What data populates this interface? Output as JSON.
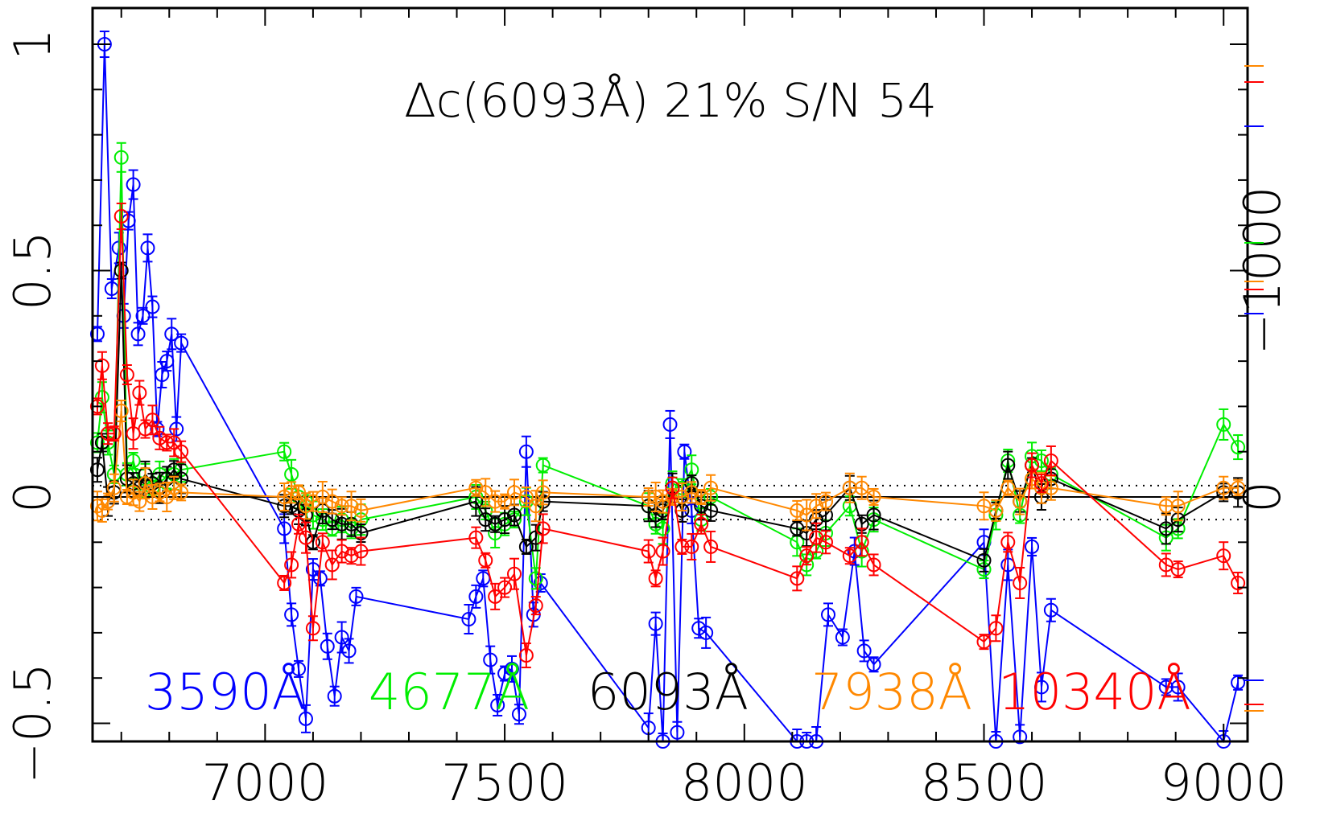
{
  "chart_data": {
    "type": "line",
    "title": "Δc(6093Å) 21% S/N 54",
    "xlabel": "",
    "ylabel": "",
    "xlim": [
      6640,
      9050
    ],
    "ylim": [
      -0.54,
      1.08
    ],
    "x_ticks": [
      7000,
      7500,
      8000,
      8500,
      9000
    ],
    "x_tick_labels": [
      "7000",
      "7500",
      "8000",
      "8500",
      "9000"
    ],
    "y_ticks": [
      -0.5,
      0,
      0.5,
      1
    ],
    "y_tick_labels": [
      "−0.5",
      "0",
      "0.5",
      "1"
    ],
    "right_axis": {
      "labels": [
        {
          "value": 0,
          "text": "0"
        },
        {
          "value": -1000,
          "text": "−1000"
        }
      ]
    },
    "reference_lines": {
      "solid": 0,
      "dotted": [
        0.025,
        -0.05
      ]
    },
    "grid": false,
    "legend_position": "bottom",
    "series": [
      {
        "name": "3590Å",
        "color": "#0000ff",
        "x": [
          6650,
          6665,
          6680,
          6695,
          6705,
          6715,
          6725,
          6735,
          6745,
          6755,
          6765,
          6775,
          6785,
          6795,
          6805,
          6815,
          6825,
          7040,
          7055,
          7070,
          7085,
          7100,
          7115,
          7130,
          7145,
          7160,
          7175,
          7190,
          7425,
          7440,
          7455,
          7470,
          7485,
          7500,
          7515,
          7530,
          7545,
          7560,
          7575,
          7800,
          7815,
          7830,
          7845,
          7860,
          7875,
          7890,
          7905,
          7920,
          8110,
          8130,
          8150,
          8175,
          8205,
          8230,
          8250,
          8270,
          8500,
          8525,
          8550,
          8575,
          8600,
          8620,
          8640,
          8880,
          8905,
          9000,
          9030
        ],
        "y": [
          0.36,
          1.0,
          0.46,
          0.55,
          0.4,
          0.61,
          0.69,
          0.36,
          0.4,
          0.55,
          0.42,
          0.15,
          0.27,
          0.3,
          0.36,
          0.15,
          0.34,
          -0.07,
          -0.26,
          -0.38,
          -0.49,
          -0.16,
          -0.18,
          -0.33,
          -0.44,
          -0.31,
          -0.34,
          -0.22,
          -0.27,
          -0.22,
          -0.18,
          -0.36,
          -0.46,
          -0.39,
          -0.38,
          -0.48,
          0.1,
          -0.26,
          -0.19,
          -0.51,
          -0.28,
          -0.54,
          0.16,
          -0.52,
          0.1,
          -0.03,
          -0.29,
          -0.3,
          -0.65,
          -0.54,
          -0.6,
          -0.26,
          -0.31,
          -0.12,
          -0.34,
          -0.37,
          -0.1,
          -0.58,
          -0.15,
          -0.53,
          -0.11,
          -0.42,
          -0.25,
          -0.42,
          -0.42,
          -0.58,
          -0.41
        ]
      },
      {
        "name": "4677Å",
        "color": "#00ee00",
        "x": [
          6650,
          6660,
          6672,
          6685,
          6700,
          6712,
          6725,
          6738,
          6750,
          6765,
          6780,
          6795,
          6810,
          6825,
          7040,
          7055,
          7070,
          7085,
          7100,
          7120,
          7140,
          7160,
          7180,
          7200,
          7440,
          7460,
          7480,
          7500,
          7520,
          7545,
          7565,
          7580,
          7800,
          7815,
          7830,
          7850,
          7870,
          7890,
          7910,
          7930,
          8110,
          8130,
          8150,
          8170,
          8220,
          8245,
          8270,
          8500,
          8525,
          8550,
          8575,
          8600,
          8620,
          8640,
          8880,
          8905,
          9000,
          9030
        ],
        "y": [
          0.12,
          0.22,
          0.12,
          0.05,
          0.75,
          0.05,
          0.08,
          0.03,
          0.05,
          0.02,
          0.05,
          0.04,
          0.05,
          0.06,
          0.1,
          0.05,
          0.0,
          -0.01,
          -0.04,
          -0.05,
          -0.07,
          -0.05,
          -0.07,
          -0.05,
          0.0,
          -0.03,
          -0.08,
          -0.06,
          -0.05,
          -0.01,
          -0.18,
          0.07,
          -0.02,
          -0.06,
          -0.07,
          0.03,
          0.02,
          0.06,
          -0.05,
          0.0,
          -0.1,
          -0.15,
          -0.12,
          -0.08,
          -0.02,
          -0.12,
          -0.05,
          -0.16,
          -0.04,
          0.08,
          -0.04,
          0.09,
          0.08,
          0.05,
          -0.09,
          -0.07,
          0.16,
          0.11
        ]
      },
      {
        "name": "6093Å",
        "color": "#000000",
        "x": [
          6650,
          6660,
          6672,
          6685,
          6700,
          6712,
          6725,
          6738,
          6750,
          6765,
          6780,
          6795,
          6810,
          6825,
          7040,
          7055,
          7070,
          7085,
          7100,
          7120,
          7140,
          7160,
          7180,
          7200,
          7440,
          7460,
          7480,
          7500,
          7520,
          7545,
          7565,
          7580,
          7800,
          7815,
          7830,
          7850,
          7870,
          7890,
          7910,
          7930,
          8110,
          8130,
          8150,
          8170,
          8220,
          8245,
          8270,
          8500,
          8525,
          8550,
          8575,
          8600,
          8620,
          8640,
          8880,
          8905,
          9000,
          9030
        ],
        "y": [
          0.06,
          0.12,
          -0.01,
          0.01,
          0.5,
          0.04,
          0.03,
          0.02,
          0.05,
          0.03,
          0.02,
          0.04,
          0.06,
          0.04,
          -0.02,
          -0.02,
          -0.03,
          -0.04,
          -0.1,
          -0.03,
          -0.05,
          -0.06,
          -0.06,
          -0.08,
          -0.01,
          -0.05,
          -0.06,
          -0.05,
          -0.04,
          -0.11,
          -0.09,
          -0.01,
          -0.02,
          -0.04,
          -0.03,
          0.02,
          -0.03,
          0.03,
          -0.02,
          -0.03,
          -0.07,
          -0.08,
          -0.05,
          -0.04,
          0.02,
          -0.06,
          -0.04,
          -0.14,
          -0.03,
          0.07,
          -0.01,
          0.07,
          0.0,
          0.04,
          -0.07,
          -0.05,
          0.01,
          0.01
        ]
      },
      {
        "name": "7938Å",
        "color": "#ff8800",
        "x": [
          6650,
          6660,
          6672,
          6685,
          6700,
          6712,
          6725,
          6738,
          6750,
          6765,
          6780,
          6795,
          6810,
          6825,
          7040,
          7055,
          7070,
          7085,
          7100,
          7120,
          7140,
          7160,
          7180,
          7200,
          7440,
          7460,
          7480,
          7500,
          7520,
          7545,
          7565,
          7580,
          7800,
          7815,
          7830,
          7850,
          7870,
          7890,
          7910,
          7930,
          8110,
          8130,
          8150,
          8170,
          8220,
          8245,
          8270,
          8500,
          8525,
          8550,
          8575,
          8600,
          8620,
          8640,
          8880,
          8905,
          9000,
          9030
        ],
        "y": [
          -0.02,
          -0.03,
          -0.01,
          0.02,
          0.19,
          0.0,
          0.01,
          -0.01,
          0.03,
          0.0,
          0.01,
          0.0,
          0.02,
          0.01,
          0.0,
          0.01,
          0.01,
          -0.02,
          -0.01,
          0.0,
          -0.01,
          -0.02,
          -0.02,
          -0.03,
          0.02,
          0.01,
          -0.01,
          -0.01,
          0.01,
          0.0,
          -0.02,
          0.01,
          0.0,
          0.0,
          -0.01,
          0.0,
          0.0,
          0.01,
          0.0,
          0.02,
          -0.03,
          -0.04,
          -0.02,
          -0.01,
          0.02,
          0.02,
          0.0,
          -0.02,
          -0.03,
          0.02,
          -0.01,
          0.04,
          0.02,
          0.02,
          -0.02,
          -0.02,
          0.02,
          0.02
        ]
      },
      {
        "name": "10340Å",
        "color": "#ff0000",
        "x": [
          6650,
          6660,
          6672,
          6685,
          6700,
          6712,
          6725,
          6738,
          6750,
          6765,
          6780,
          6795,
          6810,
          6825,
          7040,
          7055,
          7070,
          7085,
          7100,
          7120,
          7140,
          7160,
          7180,
          7200,
          7440,
          7460,
          7480,
          7500,
          7520,
          7545,
          7565,
          7580,
          7800,
          7815,
          7830,
          7850,
          7870,
          7890,
          7910,
          7930,
          8110,
          8130,
          8150,
          8170,
          8220,
          8245,
          8270,
          8500,
          8525,
          8550,
          8575,
          8600,
          8620,
          8640,
          8880,
          8905,
          9000,
          9030
        ],
        "y": [
          0.2,
          0.29,
          0.14,
          0.14,
          0.62,
          0.27,
          0.14,
          0.23,
          0.15,
          0.17,
          0.13,
          0.12,
          0.12,
          0.1,
          -0.19,
          -0.15,
          -0.06,
          -0.09,
          -0.29,
          -0.1,
          -0.15,
          -0.12,
          -0.13,
          -0.12,
          -0.09,
          -0.14,
          -0.22,
          -0.2,
          -0.17,
          -0.35,
          -0.24,
          -0.07,
          -0.12,
          -0.18,
          -0.12,
          0.02,
          -0.11,
          -0.11,
          -0.06,
          -0.11,
          -0.18,
          -0.13,
          -0.09,
          -0.1,
          -0.13,
          -0.1,
          -0.15,
          -0.32,
          -0.29,
          -0.1,
          -0.19,
          0.07,
          0.03,
          0.08,
          -0.15,
          -0.16,
          -0.13,
          -0.19
        ]
      }
    ],
    "legend": [
      {
        "text": "3590Å",
        "color": "#0000ff"
      },
      {
        "text": "4677Å",
        "color": "#00ee00"
      },
      {
        "text": "6093Å",
        "color": "#000000"
      },
      {
        "text": "7938Å",
        "color": "#ff8800"
      },
      {
        "text": "10340Å",
        "color": "#ff0000"
      }
    ]
  }
}
